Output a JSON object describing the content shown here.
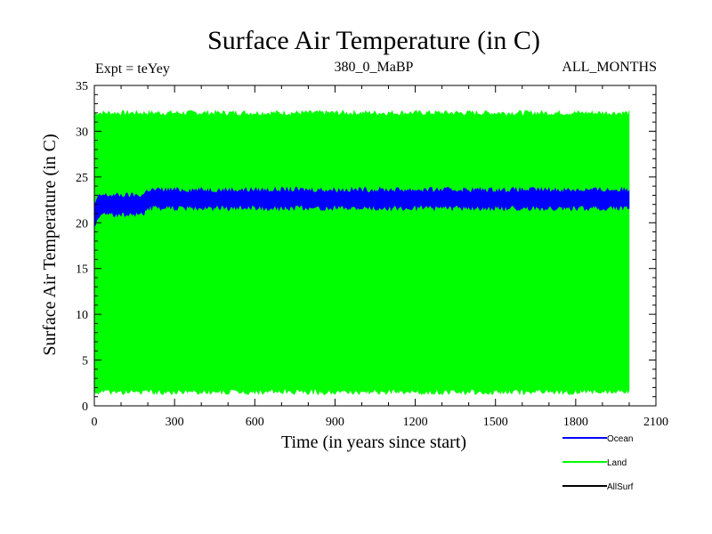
{
  "chart_data": {
    "type": "area",
    "title": "Surface Air Temperature (in C)",
    "subtitle_left": "Expt = teYey",
    "subtitle_center": "380_0_MaBP",
    "subtitle_right": "ALL_MONTHS",
    "xlabel": "Time (in years since start)",
    "ylabel": "Surface Air Temperature (in C)",
    "xlim": [
      0,
      2100
    ],
    "ylim": [
      0,
      35
    ],
    "x_ticks": [
      0,
      300,
      600,
      900,
      1200,
      1500,
      1800,
      2100
    ],
    "y_ticks": [
      0,
      5,
      10,
      15,
      20,
      25,
      30,
      35
    ],
    "legend_position": "bottom-right",
    "series": [
      {
        "name": "Land",
        "color": "#00ff00",
        "band": {
          "x": [
            0,
            20,
            180,
            200,
            2000
          ],
          "low": [
            1.5,
            1.5,
            1.5,
            1.5,
            1.5
          ],
          "high": [
            32.0,
            32.0,
            32.0,
            32.0,
            32.0
          ]
        }
      },
      {
        "name": "Ocean",
        "color": "#0000ff",
        "band": {
          "x": [
            0,
            20,
            180,
            200,
            2000
          ],
          "low": [
            19.5,
            20.9,
            20.9,
            21.6,
            21.6
          ],
          "high": [
            22.0,
            23.0,
            23.0,
            23.6,
            23.6
          ]
        }
      },
      {
        "name": "AllSurf",
        "color": "#000000",
        "band": null
      }
    ]
  }
}
